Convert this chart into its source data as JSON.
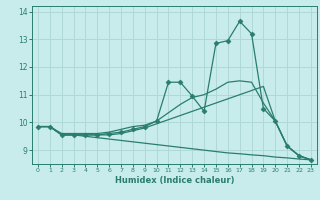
{
  "xlabel": "Humidex (Indice chaleur)",
  "background_color": "#c8ecec",
  "grid_color": "#b0d8d8",
  "line_color": "#2a7d6e",
  "xlim": [
    -0.5,
    23.5
  ],
  "ylim": [
    8.5,
    14.2
  ],
  "xticks": [
    0,
    1,
    2,
    3,
    4,
    5,
    6,
    7,
    8,
    9,
    10,
    11,
    12,
    13,
    14,
    15,
    16,
    17,
    18,
    19,
    20,
    21,
    22,
    23
  ],
  "yticks": [
    9,
    10,
    11,
    12,
    13,
    14
  ],
  "line_jagged": {
    "x": [
      0,
      1,
      2,
      3,
      4,
      5,
      6,
      7,
      8,
      9,
      10,
      11,
      12,
      13,
      14,
      15,
      16,
      17,
      18,
      19,
      20,
      21,
      22,
      23
    ],
    "y": [
      9.85,
      9.85,
      9.55,
      9.55,
      9.55,
      9.55,
      9.6,
      9.65,
      9.75,
      9.85,
      10.05,
      11.45,
      11.45,
      10.95,
      10.4,
      12.85,
      12.95,
      13.65,
      13.2,
      10.5,
      10.05,
      9.15,
      8.8,
      8.65
    ]
  },
  "line_upper": {
    "x": [
      0,
      1,
      2,
      3,
      4,
      5,
      6,
      7,
      8,
      9,
      10,
      11,
      12,
      13,
      14,
      15,
      16,
      17,
      18,
      19,
      20,
      21,
      22,
      23
    ],
    "y": [
      9.85,
      9.85,
      9.6,
      9.6,
      9.6,
      9.6,
      9.65,
      9.75,
      9.85,
      9.9,
      10.05,
      10.35,
      10.65,
      10.9,
      11.0,
      11.2,
      11.45,
      11.5,
      11.45,
      10.7,
      10.05,
      9.15,
      8.8,
      8.65
    ]
  },
  "line_mid": {
    "x": [
      0,
      1,
      2,
      3,
      4,
      5,
      6,
      7,
      8,
      9,
      10,
      11,
      12,
      13,
      14,
      15,
      16,
      17,
      18,
      19,
      20,
      21,
      22,
      23
    ],
    "y": [
      9.85,
      9.85,
      9.55,
      9.55,
      9.55,
      9.55,
      9.55,
      9.6,
      9.7,
      9.8,
      9.95,
      10.1,
      10.25,
      10.4,
      10.55,
      10.7,
      10.85,
      11.0,
      11.15,
      11.3,
      10.05,
      9.15,
      8.8,
      8.65
    ]
  },
  "line_lower": {
    "x": [
      0,
      1,
      2,
      3,
      4,
      5,
      6,
      7,
      8,
      9,
      10,
      11,
      12,
      13,
      14,
      15,
      16,
      17,
      18,
      19,
      20,
      21,
      22,
      23
    ],
    "y": [
      9.85,
      9.85,
      9.55,
      9.55,
      9.5,
      9.45,
      9.4,
      9.35,
      9.3,
      9.25,
      9.2,
      9.15,
      9.1,
      9.05,
      9.0,
      8.95,
      8.9,
      8.87,
      8.83,
      8.8,
      8.75,
      8.72,
      8.68,
      8.65
    ]
  }
}
